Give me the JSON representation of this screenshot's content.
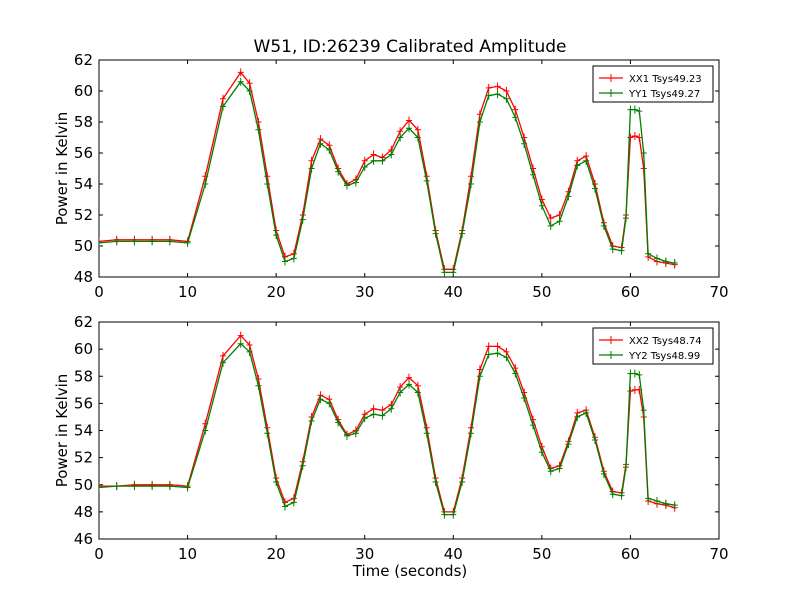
{
  "figure": {
    "title": "W51, ID:26239 Calibrated Amplitude",
    "xlabel": "Time (seconds)"
  },
  "colors": {
    "red": "#ff0000",
    "green": "#007f00"
  },
  "chart_data": [
    {
      "type": "line",
      "title": "W51, ID:26239 Calibrated Amplitude",
      "xlabel": "",
      "ylabel": "Power in Kelvin",
      "xlim": [
        0,
        70
      ],
      "ylim": [
        48,
        62
      ],
      "xticks": [
        "0",
        "10",
        "20",
        "30",
        "40",
        "50",
        "60",
        "70"
      ],
      "yticks": [
        "48",
        "50",
        "52",
        "54",
        "56",
        "58",
        "60",
        "62"
      ],
      "legend": "top-right",
      "grid": false,
      "series": [
        {
          "name": "XX1 Tsys49.23",
          "color": "red",
          "x": [
            0,
            2,
            4,
            6,
            8,
            10,
            12,
            14,
            16,
            17,
            18,
            19,
            20,
            21,
            22,
            23,
            24,
            25,
            26,
            27,
            28,
            29,
            30,
            31,
            32,
            33,
            34,
            35,
            36,
            37,
            38,
            39,
            40,
            41,
            42,
            43,
            44,
            45,
            46,
            47,
            48,
            49,
            50,
            51,
            52,
            53,
            54,
            55,
            56,
            57,
            58,
            59,
            59.5,
            60,
            60.5,
            61,
            61.5,
            62,
            63,
            64,
            65
          ],
          "y": [
            50.3,
            50.4,
            50.4,
            50.4,
            50.4,
            50.3,
            54.5,
            59.5,
            61.2,
            60.5,
            58.0,
            54.5,
            51.0,
            49.3,
            49.5,
            52.0,
            55.5,
            56.9,
            56.5,
            55.0,
            54.0,
            54.3,
            55.5,
            55.9,
            55.7,
            56.2,
            57.4,
            58.1,
            57.5,
            54.5,
            51.0,
            48.5,
            48.5,
            51.0,
            54.5,
            58.5,
            60.2,
            60.3,
            60.0,
            58.8,
            57.0,
            55.0,
            53.0,
            51.8,
            52.0,
            53.5,
            55.5,
            55.8,
            54.0,
            51.5,
            50.0,
            49.9,
            52.0,
            57.0,
            57.1,
            57.0,
            55.0,
            49.3,
            49.0,
            48.9,
            48.8
          ]
        },
        {
          "name": "YY1 Tsys49.27",
          "color": "green",
          "x": [
            0,
            2,
            4,
            6,
            8,
            10,
            12,
            14,
            16,
            17,
            18,
            19,
            20,
            21,
            22,
            23,
            24,
            25,
            26,
            27,
            28,
            29,
            30,
            31,
            32,
            33,
            34,
            35,
            36,
            37,
            38,
            39,
            40,
            41,
            42,
            43,
            44,
            45,
            46,
            47,
            48,
            49,
            50,
            51,
            52,
            53,
            54,
            55,
            56,
            57,
            58,
            59,
            59.5,
            60,
            60.5,
            61,
            61.5,
            62,
            63,
            64,
            65
          ],
          "y": [
            50.2,
            50.3,
            50.3,
            50.3,
            50.3,
            50.2,
            54.0,
            59.0,
            60.6,
            60.0,
            57.5,
            54.0,
            50.7,
            49.0,
            49.2,
            51.7,
            55.0,
            56.6,
            56.2,
            54.8,
            53.9,
            54.1,
            55.1,
            55.5,
            55.5,
            55.9,
            57.0,
            57.6,
            57.0,
            54.2,
            50.8,
            48.3,
            48.3,
            50.8,
            54.0,
            58.0,
            59.7,
            59.8,
            59.5,
            58.3,
            56.6,
            54.6,
            52.6,
            51.3,
            51.6,
            53.2,
            55.2,
            55.5,
            53.7,
            51.3,
            49.8,
            49.7,
            51.8,
            58.8,
            58.8,
            58.7,
            56.0,
            49.5,
            49.2,
            49.0,
            48.9
          ]
        }
      ]
    },
    {
      "type": "line",
      "title": "",
      "xlabel": "Time (seconds)",
      "ylabel": "Power in Kelvin",
      "xlim": [
        0,
        70
      ],
      "ylim": [
        46,
        62
      ],
      "xticks": [
        "0",
        "10",
        "20",
        "30",
        "40",
        "50",
        "60",
        "70"
      ],
      "yticks": [
        "46",
        "48",
        "50",
        "52",
        "54",
        "56",
        "58",
        "60",
        "62"
      ],
      "legend": "top-right",
      "grid": false,
      "series": [
        {
          "name": "XX2 Tsys48.74",
          "color": "red",
          "x": [
            0,
            2,
            4,
            6,
            8,
            10,
            12,
            14,
            16,
            17,
            18,
            19,
            20,
            21,
            22,
            23,
            24,
            25,
            26,
            27,
            28,
            29,
            30,
            31,
            32,
            33,
            34,
            35,
            36,
            37,
            38,
            39,
            40,
            41,
            42,
            43,
            44,
            45,
            46,
            47,
            48,
            49,
            50,
            51,
            52,
            53,
            54,
            55,
            56,
            57,
            58,
            59,
            59.5,
            60,
            60.5,
            61,
            61.5,
            62,
            63,
            64,
            65
          ],
          "y": [
            49.9,
            49.9,
            50.0,
            50.0,
            50.0,
            49.9,
            54.5,
            59.5,
            61.0,
            60.3,
            57.8,
            54.2,
            50.5,
            48.7,
            49.0,
            51.7,
            55.0,
            56.6,
            56.3,
            54.8,
            53.7,
            54.0,
            55.2,
            55.6,
            55.5,
            55.9,
            57.2,
            57.9,
            57.3,
            54.2,
            50.5,
            48.0,
            48.0,
            50.5,
            54.2,
            58.5,
            60.2,
            60.2,
            59.8,
            58.6,
            56.8,
            54.8,
            52.8,
            51.2,
            51.4,
            53.2,
            55.3,
            55.5,
            53.5,
            51.0,
            49.5,
            49.4,
            51.5,
            56.9,
            57.0,
            57.0,
            55.0,
            48.8,
            48.6,
            48.5,
            48.3
          ]
        },
        {
          "name": "YY2 Tsys48.99",
          "color": "green",
          "x": [
            0,
            2,
            4,
            6,
            8,
            10,
            12,
            14,
            16,
            17,
            18,
            19,
            20,
            21,
            22,
            23,
            24,
            25,
            26,
            27,
            28,
            29,
            30,
            31,
            32,
            33,
            34,
            35,
            36,
            37,
            38,
            39,
            40,
            41,
            42,
            43,
            44,
            45,
            46,
            47,
            48,
            49,
            50,
            51,
            52,
            53,
            54,
            55,
            56,
            57,
            58,
            59,
            59.5,
            60,
            60.5,
            61,
            61.5,
            62,
            63,
            64,
            65
          ],
          "y": [
            49.8,
            49.9,
            49.9,
            49.9,
            49.9,
            49.8,
            54.0,
            59.0,
            60.4,
            59.8,
            57.3,
            53.8,
            50.2,
            48.4,
            48.7,
            51.4,
            54.7,
            56.3,
            56.0,
            54.6,
            53.6,
            53.8,
            54.9,
            55.2,
            55.1,
            55.6,
            56.8,
            57.4,
            56.8,
            53.8,
            50.2,
            47.8,
            47.8,
            50.2,
            53.8,
            58.0,
            59.6,
            59.7,
            59.4,
            58.2,
            56.4,
            54.4,
            52.4,
            51.0,
            51.2,
            53.0,
            55.0,
            55.3,
            53.3,
            50.8,
            49.3,
            49.2,
            51.3,
            58.2,
            58.2,
            58.1,
            55.5,
            49.0,
            48.8,
            48.6,
            48.5
          ]
        }
      ]
    }
  ]
}
